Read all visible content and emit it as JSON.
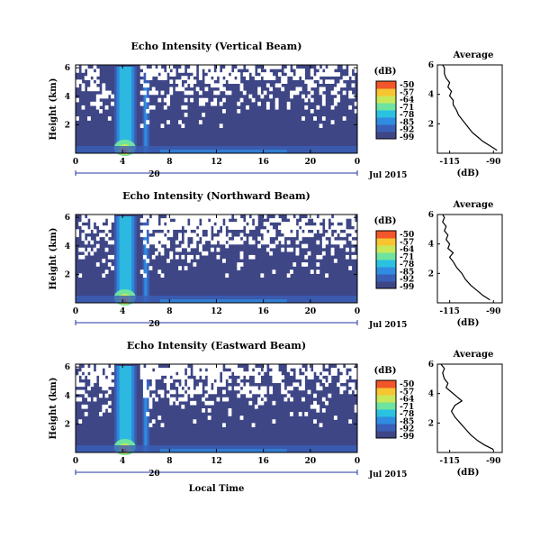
{
  "chart_data": [
    {
      "type": "heatmap",
      "title": "Echo Intensity (Vertical Beam)",
      "ylabel": "Height (km)",
      "x_ticks": [
        "0",
        "4",
        "8",
        "12",
        "16",
        "20",
        "0"
      ],
      "y_ticks": [
        "6",
        "4",
        "2"
      ],
      "date_marker": "20",
      "date_label": "Jul 2015",
      "colorbar": {
        "unit": "(dB)",
        "ticks": [
          "-50",
          "-57",
          "-64",
          "-71",
          "-78",
          "-85",
          "-92",
          "-99"
        ]
      },
      "average": {
        "title": "Average",
        "xlabel": "(dB)",
        "x_ticks": [
          "-115",
          "-90"
        ],
        "y_ticks": [
          "6",
          "4",
          "2"
        ],
        "xlim": [
          -122,
          -85
        ],
        "ylim": [
          0,
          6
        ],
        "profile": [
          [
            -88,
            0.2
          ],
          [
            -92,
            0.5
          ],
          [
            -96,
            0.8
          ],
          [
            -99,
            1.1
          ],
          [
            -102,
            1.4
          ],
          [
            -104,
            1.7
          ],
          [
            -106,
            2.0
          ],
          [
            -108,
            2.3
          ],
          [
            -110,
            2.6
          ],
          [
            -111,
            2.9
          ],
          [
            -113,
            3.3
          ],
          [
            -113,
            3.6
          ],
          [
            -115,
            3.9
          ],
          [
            -114,
            4.2
          ],
          [
            -116,
            4.5
          ],
          [
            -115,
            4.8
          ],
          [
            -117,
            5.1
          ],
          [
            -118,
            5.4
          ],
          [
            -118,
            5.8
          ],
          [
            -119,
            6.0
          ]
        ]
      }
    },
    {
      "type": "heatmap",
      "title": "Echo Intensity (Northward Beam)",
      "ylabel": "Height (km)",
      "x_ticks": [
        "0",
        "4",
        "8",
        "12",
        "16",
        "20",
        "0"
      ],
      "y_ticks": [
        "6",
        "4",
        "2"
      ],
      "date_marker": "20",
      "date_label": "Jul 2015",
      "colorbar": {
        "unit": "(dB)",
        "ticks": [
          "-50",
          "-57",
          "-64",
          "-71",
          "-78",
          "-85",
          "-92",
          "-99"
        ]
      },
      "average": {
        "title": "Average",
        "xlabel": "(dB)",
        "x_ticks": [
          "-115",
          "-90"
        ],
        "y_ticks": [
          "6",
          "4",
          "2"
        ],
        "xlim": [
          -122,
          -85
        ],
        "ylim": [
          0,
          6
        ],
        "profile": [
          [
            -92,
            0.2
          ],
          [
            -96,
            0.5
          ],
          [
            -99,
            0.8
          ],
          [
            -103,
            1.2
          ],
          [
            -106,
            1.6
          ],
          [
            -108,
            2.0
          ],
          [
            -111,
            2.4
          ],
          [
            -113,
            2.8
          ],
          [
            -115,
            3.1
          ],
          [
            -113,
            3.4
          ],
          [
            -116,
            3.7
          ],
          [
            -115,
            4.0
          ],
          [
            -117,
            4.3
          ],
          [
            -116,
            4.6
          ],
          [
            -118,
            4.9
          ],
          [
            -117,
            5.2
          ],
          [
            -119,
            5.5
          ],
          [
            -118,
            5.8
          ],
          [
            -119,
            6.0
          ]
        ]
      }
    },
    {
      "type": "heatmap",
      "title": "Echo Intensity (Eastward Beam)",
      "ylabel": "Height (km)",
      "xlabel": "Local Time",
      "x_ticks": [
        "0",
        "4",
        "8",
        "12",
        "16",
        "20",
        "0"
      ],
      "y_ticks": [
        "6",
        "4",
        "2"
      ],
      "date_marker": "20",
      "date_label": "Jul 2015",
      "colorbar": {
        "unit": "(dB)",
        "ticks": [
          "-50",
          "-57",
          "-64",
          "-71",
          "-78",
          "-85",
          "-92",
          "-99"
        ]
      },
      "average": {
        "title": "Average",
        "xlabel": "(dB)",
        "x_ticks": [
          "-115",
          "-90"
        ],
        "y_ticks": [
          "6",
          "4",
          "2"
        ],
        "xlim": [
          -122,
          -85
        ],
        "ylim": [
          0,
          6
        ],
        "profile": [
          [
            -90,
            0.2
          ],
          [
            -95,
            0.5
          ],
          [
            -99,
            0.8
          ],
          [
            -103,
            1.2
          ],
          [
            -106,
            1.6
          ],
          [
            -109,
            2.0
          ],
          [
            -112,
            2.4
          ],
          [
            -114,
            2.8
          ],
          [
            -112,
            3.2
          ],
          [
            -108,
            3.5
          ],
          [
            -111,
            3.8
          ],
          [
            -114,
            4.1
          ],
          [
            -117,
            4.4
          ],
          [
            -116,
            4.7
          ],
          [
            -118,
            5.0
          ],
          [
            -119,
            5.4
          ],
          [
            -118,
            5.7
          ],
          [
            -120,
            6.0
          ]
        ]
      }
    }
  ],
  "colors": {
    "background_field": "#3e4686",
    "colormap": [
      "#3e4686",
      "#3a5fb8",
      "#2f8ce0",
      "#2bc1e0",
      "#6fe3a0",
      "#c8e85a",
      "#f7c531",
      "#f2562a"
    ]
  }
}
